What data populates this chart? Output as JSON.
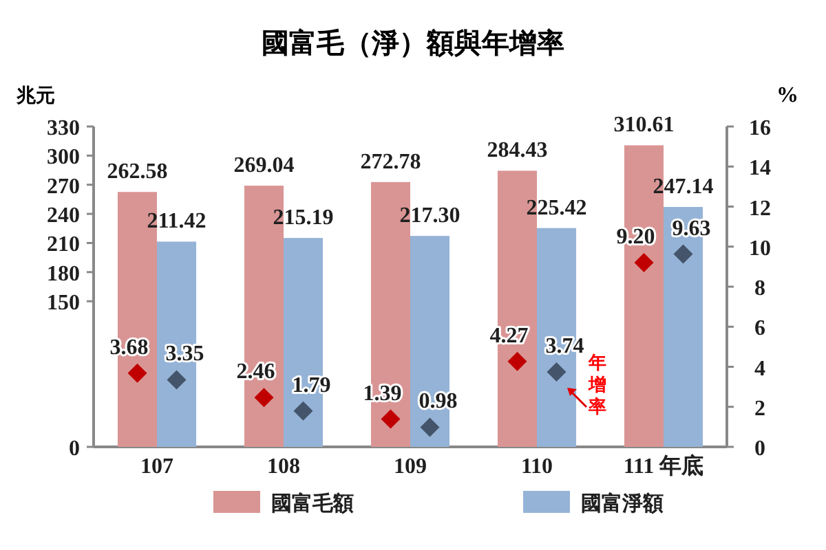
{
  "chart_data": {
    "type": "bar",
    "title": "國富毛（淨）額與年增率",
    "ylabel": "兆元",
    "y2label": "%",
    "categories": [
      "107",
      "108",
      "109",
      "110",
      "111 年底"
    ],
    "series": [
      {
        "name": "國富毛額",
        "color": "#d99594",
        "values": [
          262.58,
          269.04,
          272.78,
          284.43,
          310.61
        ],
        "value_labels": [
          "262.58",
          "269.04",
          "272.78",
          "284.43",
          "310.61"
        ]
      },
      {
        "name": "國富淨額",
        "color": "#95b3d7",
        "values": [
          211.42,
          215.19,
          217.3,
          225.42,
          247.14
        ],
        "value_labels": [
          "211.42",
          "215.19",
          "217.30",
          "225.42",
          "247.14"
        ]
      },
      {
        "type": "scatter",
        "axis": "y2",
        "marker": "diamond",
        "color": "#c00000",
        "values": [
          3.68,
          2.46,
          1.39,
          4.27,
          9.2
        ],
        "value_labels": [
          "3.68",
          "2.46",
          "1.39",
          "4.27",
          "9.20"
        ]
      },
      {
        "type": "scatter",
        "axis": "y2",
        "marker": "diamond",
        "color": "#44546a",
        "values": [
          3.35,
          1.79,
          0.98,
          3.74,
          9.63
        ],
        "value_labels": [
          "3.35",
          "1.79",
          "0.98",
          "3.74",
          "9.63"
        ]
      }
    ],
    "ylim": [
      0,
      330
    ],
    "yticks": [
      0,
      150,
      180,
      210,
      240,
      270,
      300,
      330
    ],
    "y2lim": [
      0,
      16
    ],
    "y2ticks": [
      0,
      2,
      4,
      6,
      8,
      10,
      12,
      14,
      16
    ],
    "legend": "bottom",
    "annotations": [
      "年增率"
    ]
  }
}
